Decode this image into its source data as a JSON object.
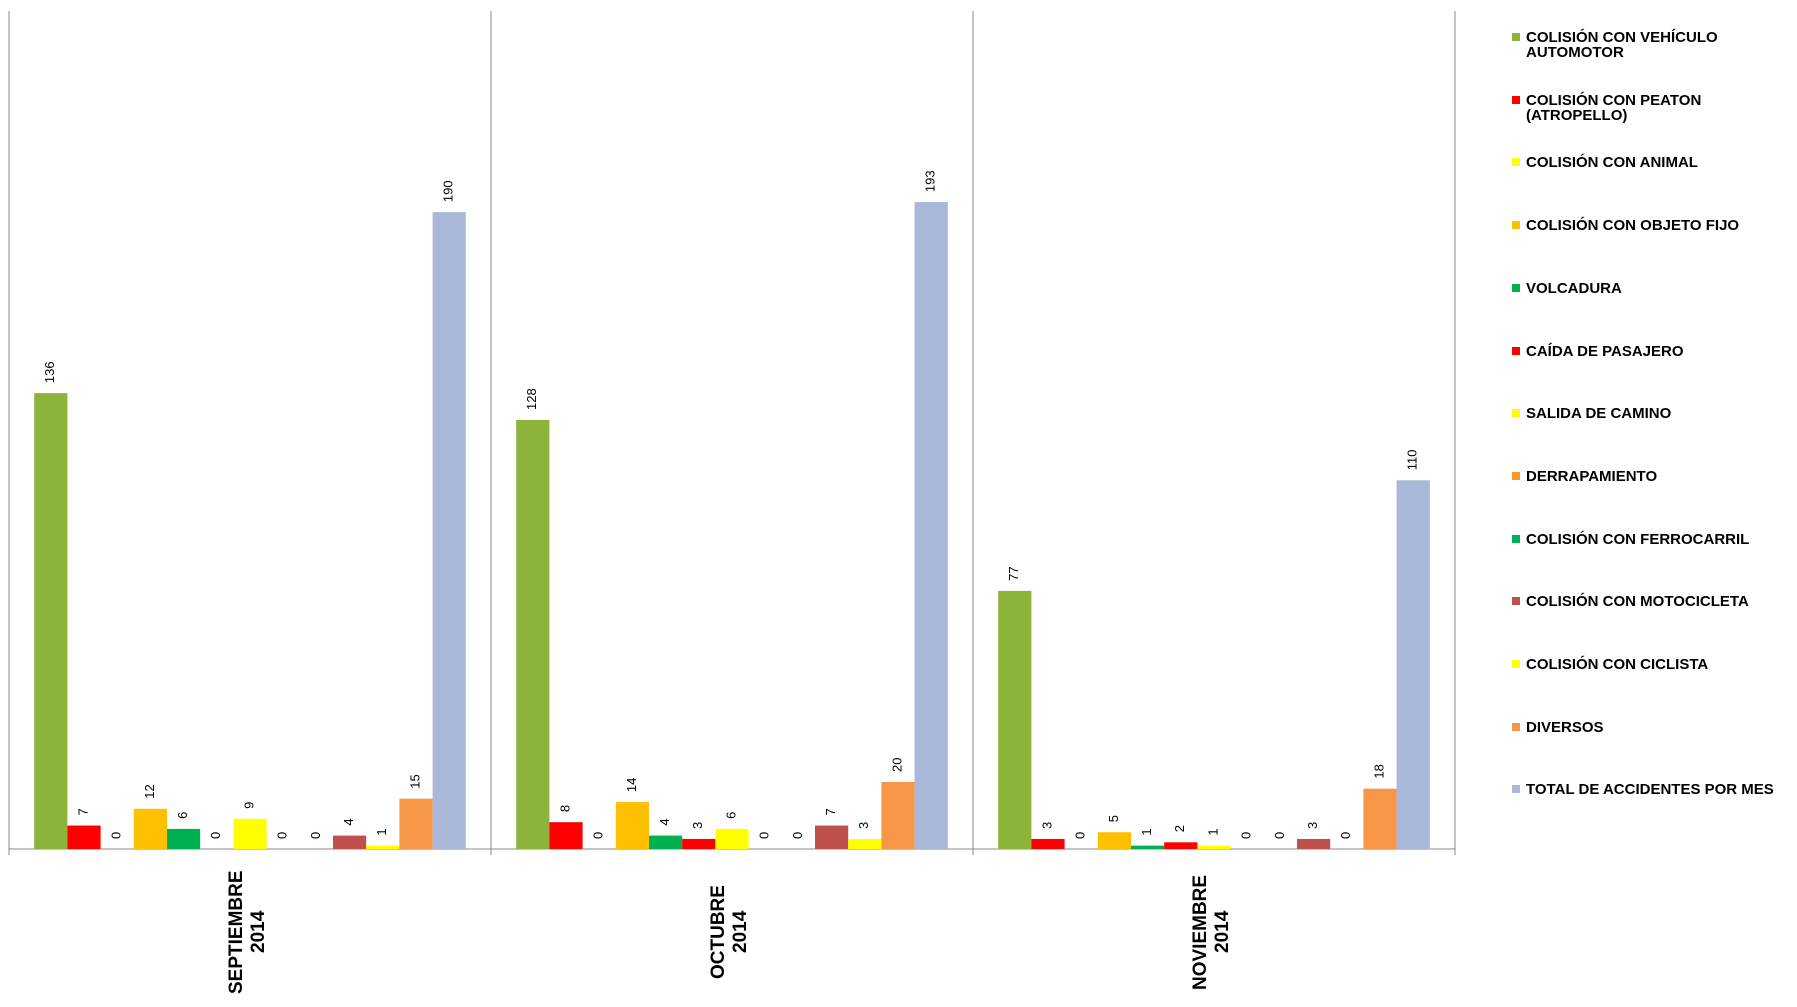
{
  "chart_data": {
    "type": "bar",
    "categories": [
      "SEPTIEMBRE 2014",
      "OCTUBRE 2014",
      "NOVIEMBRE 2014"
    ],
    "ylim": [
      0,
      250
    ],
    "series": [
      {
        "name": "COLISIÓN  CON  VEHÍCULO AUTOMOTOR",
        "color": "#8db33a",
        "values": [
          136,
          128,
          77
        ]
      },
      {
        "name": "COLISIÓN CON PEATON (ATROPELLO)",
        "color": "#ff0000",
        "values": [
          7,
          8,
          3
        ]
      },
      {
        "name": "COLISIÓN CON ANIMAL",
        "color": "#ffff00",
        "values": [
          0,
          0,
          0
        ]
      },
      {
        "name": "COLISIÓN CON OBJETO FIJO",
        "color": "#ffc000",
        "values": [
          12,
          14,
          5
        ]
      },
      {
        "name": "VOLCADURA",
        "color": "#00b050",
        "values": [
          6,
          4,
          1
        ]
      },
      {
        "name": "CAÍDA DE PASAJERO",
        "color": "#ff0000",
        "values": [
          0,
          3,
          2
        ]
      },
      {
        "name": "SALIDA DE CAMINO",
        "color": "#ffff00",
        "values": [
          9,
          6,
          1
        ]
      },
      {
        "name": "DERRAPAMIENTO",
        "color": "#f59a23",
        "values": [
          0,
          0,
          0
        ]
      },
      {
        "name": "COLISIÓN CON FERROCARRIL",
        "color": "#00b050",
        "values": [
          0,
          0,
          0
        ]
      },
      {
        "name": "COLISIÓN CON MOTOCICLETA",
        "color": "#c0504d",
        "values": [
          4,
          7,
          3
        ]
      },
      {
        "name": "COLISIÓN CON CICLISTA",
        "color": "#ffff00",
        "values": [
          1,
          3,
          0
        ]
      },
      {
        "name": "DIVERSOS",
        "color": "#f79646",
        "values": [
          15,
          20,
          18
        ]
      },
      {
        "name": "TOTAL DE ACCIDENTES POR MES",
        "color": "#a9b8d8",
        "values": [
          190,
          193,
          110
        ]
      }
    ]
  }
}
